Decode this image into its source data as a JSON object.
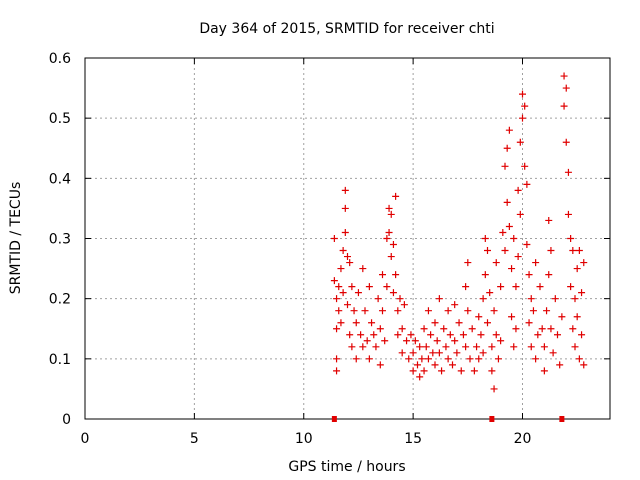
{
  "chart_data": {
    "type": "scatter",
    "title": "Day 364 of 2015, SRMTID for receiver chti",
    "xlabel": "GPS time / hours",
    "ylabel": "SRMTID / TECUs",
    "xlim": [
      0,
      24
    ],
    "ylim": [
      0,
      0.6
    ],
    "xticks": [
      0,
      5,
      10,
      15,
      20
    ],
    "yticks": [
      0,
      0.1,
      0.2,
      0.3,
      0.4,
      0.5,
      0.6
    ],
    "grid": true,
    "marker": "+",
    "color": "#e00000",
    "series": [
      {
        "name": "SRMTID",
        "points": [
          [
            11.4,
            0.3
          ],
          [
            11.4,
            0.23
          ],
          [
            11.5,
            0.2
          ],
          [
            11.5,
            0.15
          ],
          [
            11.5,
            0.1
          ],
          [
            11.5,
            0.08
          ],
          [
            11.6,
            0.22
          ],
          [
            11.6,
            0.18
          ],
          [
            11.7,
            0.25
          ],
          [
            11.7,
            0.16
          ],
          [
            11.8,
            0.28
          ],
          [
            11.8,
            0.21
          ],
          [
            11.9,
            0.38
          ],
          [
            11.9,
            0.35
          ],
          [
            11.9,
            0.31
          ],
          [
            12.0,
            0.27
          ],
          [
            12.0,
            0.19
          ],
          [
            12.1,
            0.26
          ],
          [
            12.1,
            0.14
          ],
          [
            12.2,
            0.22
          ],
          [
            12.2,
            0.12
          ],
          [
            12.3,
            0.18
          ],
          [
            12.4,
            0.16
          ],
          [
            12.4,
            0.1
          ],
          [
            12.5,
            0.21
          ],
          [
            12.6,
            0.14
          ],
          [
            12.7,
            0.25
          ],
          [
            12.7,
            0.12
          ],
          [
            12.8,
            0.18
          ],
          [
            12.9,
            0.13
          ],
          [
            13.0,
            0.22
          ],
          [
            13.0,
            0.1
          ],
          [
            13.1,
            0.16
          ],
          [
            13.2,
            0.14
          ],
          [
            13.3,
            0.12
          ],
          [
            13.4,
            0.2
          ],
          [
            13.5,
            0.15
          ],
          [
            13.5,
            0.09
          ],
          [
            13.6,
            0.24
          ],
          [
            13.6,
            0.18
          ],
          [
            13.7,
            0.13
          ],
          [
            13.8,
            0.3
          ],
          [
            13.8,
            0.22
          ],
          [
            13.9,
            0.35
          ],
          [
            13.9,
            0.31
          ],
          [
            14.0,
            0.34
          ],
          [
            14.0,
            0.27
          ],
          [
            14.1,
            0.29
          ],
          [
            14.1,
            0.21
          ],
          [
            14.2,
            0.37
          ],
          [
            14.2,
            0.24
          ],
          [
            14.3,
            0.18
          ],
          [
            14.3,
            0.14
          ],
          [
            14.4,
            0.2
          ],
          [
            14.5,
            0.15
          ],
          [
            14.5,
            0.11
          ],
          [
            14.6,
            0.19
          ],
          [
            14.7,
            0.13
          ],
          [
            14.8,
            0.1
          ],
          [
            14.9,
            0.14
          ],
          [
            15.0,
            0.11
          ],
          [
            15.0,
            0.08
          ],
          [
            15.1,
            0.13
          ],
          [
            15.2,
            0.09
          ],
          [
            15.3,
            0.07
          ],
          [
            15.3,
            0.12
          ],
          [
            15.4,
            0.1
          ],
          [
            15.5,
            0.15
          ],
          [
            15.5,
            0.08
          ],
          [
            15.6,
            0.12
          ],
          [
            15.7,
            0.18
          ],
          [
            15.7,
            0.1
          ],
          [
            15.8,
            0.14
          ],
          [
            15.9,
            0.11
          ],
          [
            16.0,
            0.16
          ],
          [
            16.0,
            0.09
          ],
          [
            16.1,
            0.13
          ],
          [
            16.2,
            0.2
          ],
          [
            16.2,
            0.11
          ],
          [
            16.3,
            0.08
          ],
          [
            16.4,
            0.15
          ],
          [
            16.5,
            0.12
          ],
          [
            16.6,
            0.18
          ],
          [
            16.6,
            0.1
          ],
          [
            16.7,
            0.14
          ],
          [
            16.8,
            0.09
          ],
          [
            16.9,
            0.19
          ],
          [
            16.9,
            0.13
          ],
          [
            17.0,
            0.11
          ],
          [
            17.1,
            0.16
          ],
          [
            17.2,
            0.08
          ],
          [
            17.3,
            0.14
          ],
          [
            17.4,
            0.22
          ],
          [
            17.4,
            0.12
          ],
          [
            17.5,
            0.26
          ],
          [
            17.5,
            0.18
          ],
          [
            17.6,
            0.1
          ],
          [
            17.7,
            0.15
          ],
          [
            17.8,
            0.08
          ],
          [
            17.9,
            0.12
          ],
          [
            18.0,
            0.17
          ],
          [
            18.0,
            0.1
          ],
          [
            18.1,
            0.14
          ],
          [
            18.2,
            0.2
          ],
          [
            18.2,
            0.11
          ],
          [
            18.3,
            0.3
          ],
          [
            18.3,
            0.24
          ],
          [
            18.4,
            0.28
          ],
          [
            18.4,
            0.16
          ],
          [
            18.5,
            0.21
          ],
          [
            18.6,
            0.12
          ],
          [
            18.6,
            0.08
          ],
          [
            18.7,
            0.05
          ],
          [
            18.7,
            0.18
          ],
          [
            18.8,
            0.26
          ],
          [
            18.8,
            0.14
          ],
          [
            18.9,
            0.1
          ],
          [
            19.0,
            0.22
          ],
          [
            19.0,
            0.13
          ],
          [
            19.1,
            0.31
          ],
          [
            19.2,
            0.42
          ],
          [
            19.2,
            0.28
          ],
          [
            19.3,
            0.45
          ],
          [
            19.3,
            0.36
          ],
          [
            19.4,
            0.48
          ],
          [
            19.4,
            0.32
          ],
          [
            19.5,
            0.25
          ],
          [
            19.5,
            0.17
          ],
          [
            19.6,
            0.3
          ],
          [
            19.6,
            0.12
          ],
          [
            19.7,
            0.22
          ],
          [
            19.7,
            0.15
          ],
          [
            19.8,
            0.38
          ],
          [
            19.8,
            0.27
          ],
          [
            19.9,
            0.46
          ],
          [
            19.9,
            0.34
          ],
          [
            20.0,
            0.54
          ],
          [
            20.0,
            0.5
          ],
          [
            20.1,
            0.52
          ],
          [
            20.1,
            0.42
          ],
          [
            20.2,
            0.39
          ],
          [
            20.2,
            0.29
          ],
          [
            20.3,
            0.24
          ],
          [
            20.3,
            0.16
          ],
          [
            20.4,
            0.2
          ],
          [
            20.4,
            0.12
          ],
          [
            20.5,
            0.18
          ],
          [
            20.6,
            0.26
          ],
          [
            20.6,
            0.1
          ],
          [
            20.7,
            0.14
          ],
          [
            20.8,
            0.22
          ],
          [
            20.9,
            0.15
          ],
          [
            21.0,
            0.12
          ],
          [
            21.0,
            0.08
          ],
          [
            21.1,
            0.18
          ],
          [
            21.2,
            0.33
          ],
          [
            21.2,
            0.24
          ],
          [
            21.3,
            0.28
          ],
          [
            21.3,
            0.15
          ],
          [
            21.4,
            0.11
          ],
          [
            21.5,
            0.2
          ],
          [
            21.6,
            0.14
          ],
          [
            21.7,
            0.09
          ],
          [
            21.8,
            0.17
          ],
          [
            21.9,
            0.57
          ],
          [
            21.9,
            0.52
          ],
          [
            22.0,
            0.55
          ],
          [
            22.0,
            0.46
          ],
          [
            22.1,
            0.41
          ],
          [
            22.1,
            0.34
          ],
          [
            22.2,
            0.3
          ],
          [
            22.2,
            0.22
          ],
          [
            22.3,
            0.28
          ],
          [
            22.3,
            0.15
          ],
          [
            22.4,
            0.2
          ],
          [
            22.4,
            0.12
          ],
          [
            22.5,
            0.25
          ],
          [
            22.5,
            0.17
          ],
          [
            22.6,
            0.28
          ],
          [
            22.6,
            0.1
          ],
          [
            22.7,
            0.21
          ],
          [
            22.7,
            0.14
          ],
          [
            22.8,
            0.26
          ],
          [
            22.8,
            0.09
          ]
        ]
      }
    ],
    "markers_on_xaxis": [
      11.4,
      18.6,
      21.8
    ]
  }
}
